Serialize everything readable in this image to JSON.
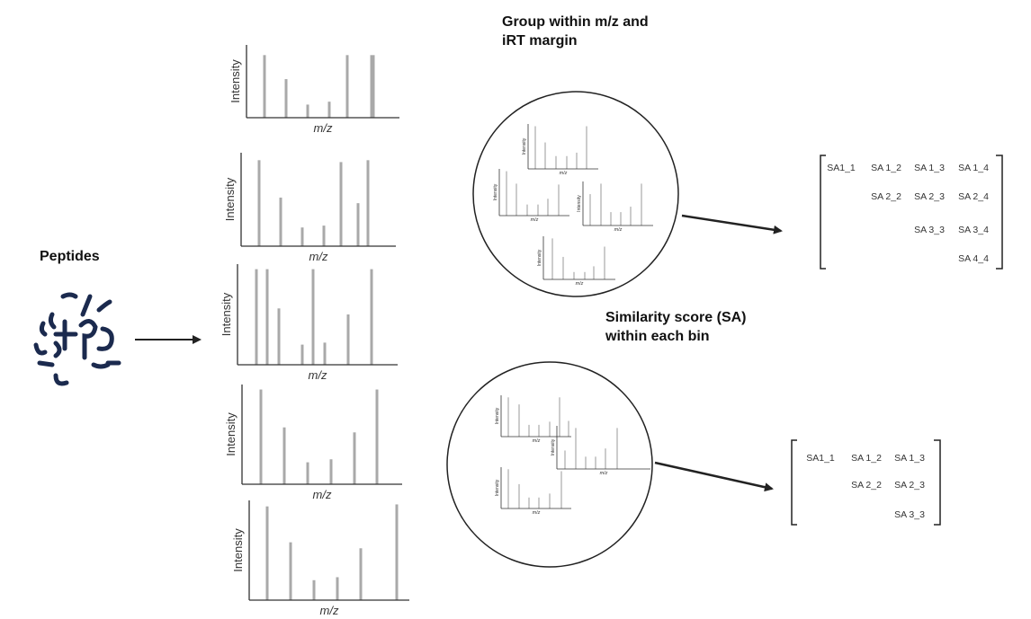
{
  "labels": {
    "peptides": "Peptides",
    "group_title": [
      "Group within m/z and",
      "iRT margin"
    ],
    "similarity_title": [
      "Similarity score (SA)",
      "within each bin"
    ],
    "intensity_axis": "Intensity",
    "mz_axis": "m/z"
  },
  "colors": {
    "peptide_blue": "#1b2a4e",
    "bar_gray": "#a9a9a9",
    "axis_dark": "#333333",
    "arrow": "#222222"
  },
  "icons": {
    "peptides": "peptide-squiggles-icon",
    "arrow": "right-arrow-icon"
  },
  "spectra": [
    {
      "bars": [
        0.86,
        0.53,
        0.18,
        0.22,
        0.86,
        0.86
      ]
    },
    {
      "bars": [
        0.92,
        0.52,
        0.2,
        0.22,
        0.9,
        0.46,
        0.92
      ]
    },
    {
      "bars": [
        0.95,
        0.95,
        0.56,
        0.2,
        0.95,
        0.22,
        0.5,
        0.95
      ]
    },
    {
      "bars": [
        0.95,
        0.57,
        0.22,
        0.25,
        0.52,
        0.95
      ]
    },
    {
      "bars": [
        0.94,
        0.58,
        0.2,
        0.23,
        0.52,
        0.96
      ]
    }
  ],
  "bin1_spectra": [
    {
      "bars": [
        1.0,
        0.62,
        0.3,
        0.3,
        0.38,
        1.0
      ]
    },
    {
      "bars": [
        1.0,
        0.72,
        0.25,
        0.25,
        0.38,
        0.7
      ]
    },
    {
      "bars": [
        0.75,
        1.0,
        0.32,
        0.32,
        0.45,
        1.0
      ]
    },
    {
      "bars": [
        1.0,
        0.55,
        0.18,
        0.18,
        0.32,
        0.8
      ]
    }
  ],
  "bin2_spectra": [
    {
      "bars": [
        1.0,
        0.82,
        0.3,
        0.3,
        0.38,
        1.0,
        0.4
      ]
    },
    {
      "bars": [
        0.45,
        1.0,
        0.3,
        0.3,
        0.5,
        1.0
      ]
    },
    {
      "bars": [
        1.0,
        0.62,
        0.28,
        0.28,
        0.38,
        0.95
      ]
    }
  ],
  "matrix1": {
    "rows": [
      [
        "SA1_1",
        "SA 1_2",
        "SA 1_3",
        "SA 1_4"
      ],
      [
        "",
        "SA 2_2",
        "SA 2_3",
        "SA 2_4"
      ],
      [
        "",
        "",
        "SA 3_3",
        "SA 3_4"
      ],
      [
        "",
        "",
        "",
        "SA 4_4"
      ]
    ]
  },
  "matrix2": {
    "rows": [
      [
        "SA1_1",
        "SA 1_2",
        "SA 1_3"
      ],
      [
        "",
        "SA 2_2",
        "SA 2_3"
      ],
      [
        "",
        "",
        "SA 3_3"
      ]
    ]
  }
}
